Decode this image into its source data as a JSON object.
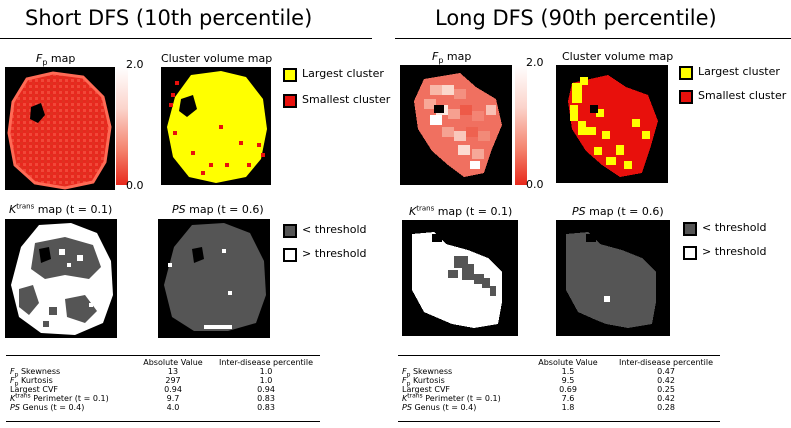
{
  "left": {
    "title": "Short DFS (10th percentile)",
    "fp_label_sym": "F",
    "fp_label_sub": "p",
    "fp_label_rest": " map",
    "cluster_label": "Cluster volume map",
    "cbar_max": "2.0",
    "cbar_min": "0.0",
    "legend_largest": "Largest cluster",
    "legend_smallest": "Smallest cluster",
    "ktrans_sym": "K",
    "ktrans_sup": "trans",
    "ktrans_rest": " map (t = 0.1)",
    "ps_sym": "PS",
    "ps_rest": " map (t = 0.6)",
    "legend_below": "< threshold",
    "legend_above": "> threshold"
  },
  "right": {
    "title": "Long DFS (90th percentile)",
    "fp_label_sym": "F",
    "fp_label_sub": "p",
    "fp_label_rest": " map",
    "cluster_label": "Cluster volume map",
    "cbar_max": "2.0",
    "cbar_min": "0.0",
    "legend_largest": "Largest cluster",
    "legend_smallest": "Smallest cluster",
    "ktrans_sym": "K",
    "ktrans_sup": "trans",
    "ktrans_rest": " map (t = 0.1)",
    "ps_sym": "PS",
    "ps_rest": " map (t = 0.6)",
    "legend_below": "< threshold",
    "legend_above": "> threshold"
  },
  "colors": {
    "largest_cluster": "#ffff00",
    "smallest_cluster": "#e8100c",
    "below_threshold": "#555555",
    "above_threshold": "#ffffff"
  },
  "table_headers": [
    "",
    "Absolute Value",
    "Inter-disease percentile"
  ],
  "left_table": [
    {
      "sym": "F",
      "sub": "p",
      "sup": "",
      "rest": " Skewness",
      "abs": "13",
      "pct": "1.0"
    },
    {
      "sym": "F",
      "sub": "p",
      "sup": "",
      "rest": " Kurtosis",
      "abs": "297",
      "pct": "1.0"
    },
    {
      "sym": "",
      "sub": "",
      "sup": "",
      "rest": "Largest CVF",
      "abs": "0.94",
      "pct": "0.94"
    },
    {
      "sym": "K",
      "sub": "",
      "sup": "trans",
      "rest": " Perimeter (t = 0.1)",
      "abs": "9.7",
      "pct": "0.83"
    },
    {
      "sym": "PS",
      "sub": "",
      "sup": "",
      "rest": " Genus (t = 0.4)",
      "abs": "4.0",
      "pct": "0.83"
    }
  ],
  "right_table": [
    {
      "sym": "F",
      "sub": "p",
      "sup": "",
      "rest": " Skewness",
      "abs": "1.5",
      "pct": "0.47"
    },
    {
      "sym": "F",
      "sub": "p",
      "sup": "",
      "rest": " Kurtosis",
      "abs": "9.5",
      "pct": "0.42"
    },
    {
      "sym": "",
      "sub": "",
      "sup": "",
      "rest": "Largest CVF",
      "abs": "0.69",
      "pct": "0.25"
    },
    {
      "sym": "K",
      "sub": "",
      "sup": "trans",
      "rest": " Perimeter (t = 0.1)",
      "abs": "7.6",
      "pct": "0.42"
    },
    {
      "sym": "PS",
      "sub": "",
      "sup": "",
      "rest": " Genus (t = 0.4)",
      "abs": "1.8",
      "pct": "0.28"
    }
  ]
}
